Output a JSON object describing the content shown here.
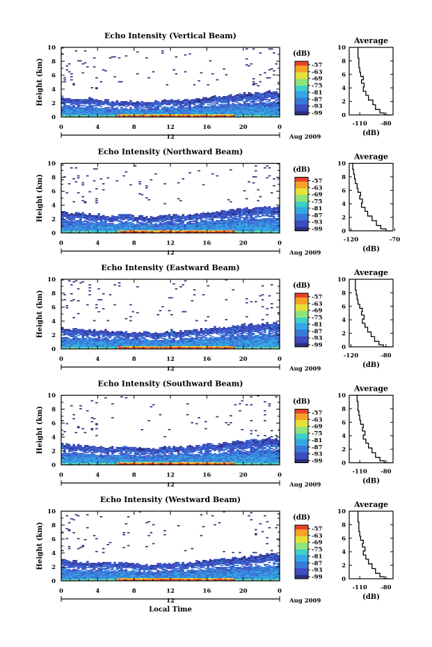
{
  "colors": {
    "colorbar": [
      "#2a2f7a",
      "#3d4cc0",
      "#3a79d9",
      "#34a7e2",
      "#3fd0c8",
      "#8ee37a",
      "#e3e23a",
      "#f7a128",
      "#e8402a"
    ],
    "axis": "#000000"
  },
  "chart_data": [
    {
      "type": "heatmap",
      "title": "Echo Intensity (Vertical Beam)",
      "ylabel": "Height (km)",
      "xticks": [
        "0",
        "4",
        "8",
        "12",
        "16",
        "20",
        "0"
      ],
      "yticks": [
        "0",
        "2",
        "4",
        "6",
        "8",
        "10"
      ],
      "xlim": [
        0,
        24
      ],
      "ylim": [
        0,
        10
      ],
      "date_marker": "12",
      "date_label": "Aug 2009",
      "colorbar": {
        "unit": "(dB)",
        "ticks": [
          "-57",
          "-63",
          "-69",
          "-75",
          "-81",
          "-87",
          "-93",
          "-99"
        ]
      },
      "echo_top_km": [
        2.8,
        2.6,
        2.7,
        2.6,
        2.5,
        2.4,
        2.3,
        2.4,
        2.2,
        2.3,
        2.2,
        2.4,
        2.5,
        2.4,
        2.5,
        2.6,
        2.9,
        3.0,
        3.1,
        3.3,
        3.4,
        3.5,
        3.6,
        3.7,
        3.5
      ]
    },
    {
      "type": "line",
      "title": "Average",
      "xlabel": "(dB)",
      "xticks": [
        "-110",
        "-80"
      ],
      "yticks": [
        "0",
        "2",
        "4",
        "6",
        "8",
        "10"
      ],
      "xlim": [
        -122,
        -72
      ],
      "ylim": [
        0,
        10
      ],
      "x": [
        -75,
        -82,
        -87,
        -92,
        -95,
        -100,
        -103,
        -106,
        -105,
        -108,
        -106,
        -109,
        -110,
        -111,
        -111,
        -112,
        -112
      ],
      "y": [
        0,
        0.3,
        0.8,
        1.5,
        2.2,
        2.9,
        3.5,
        4.1,
        4.7,
        5.2,
        5.7,
        6.3,
        7.0,
        7.7,
        8.4,
        9.1,
        10
      ]
    },
    {
      "type": "heatmap",
      "title": "Echo Intensity (Northward Beam)",
      "ylabel": "Height (km)",
      "xticks": [
        "0",
        "4",
        "8",
        "12",
        "16",
        "20",
        "0"
      ],
      "yticks": [
        "0",
        "2",
        "4",
        "6",
        "8",
        "10"
      ],
      "xlim": [
        0,
        24
      ],
      "ylim": [
        0,
        10
      ],
      "date_marker": "12",
      "date_label": "Aug 2009",
      "colorbar": {
        "unit": "(dB)",
        "ticks": [
          "-57",
          "-63",
          "-69",
          "-75",
          "-81",
          "-87",
          "-93",
          "-99"
        ]
      },
      "echo_top_km": [
        3.0,
        2.8,
        2.9,
        2.7,
        2.6,
        2.5,
        2.5,
        2.6,
        2.4,
        2.4,
        2.3,
        2.5,
        2.6,
        2.6,
        2.7,
        2.8,
        3.0,
        3.1,
        3.2,
        3.4,
        3.5,
        3.6,
        3.7,
        3.8,
        3.6
      ]
    },
    {
      "type": "line",
      "title": "Average",
      "xlabel": "(dB)",
      "xticks": [
        "-120",
        "-70"
      ],
      "yticks": [
        "0",
        "2",
        "4",
        "6",
        "8",
        "10"
      ],
      "xlim": [
        -122,
        -72
      ],
      "ylim": [
        0,
        10
      ],
      "x": [
        -73,
        -80,
        -86,
        -91,
        -96,
        -101,
        -104,
        -108,
        -107,
        -110,
        -109,
        -112,
        -113,
        -115,
        -116,
        -117,
        -118
      ],
      "y": [
        0,
        0.3,
        0.8,
        1.5,
        2.2,
        2.9,
        3.5,
        4.1,
        4.7,
        5.2,
        5.7,
        6.3,
        7.0,
        7.7,
        8.4,
        9.1,
        10
      ]
    },
    {
      "type": "heatmap",
      "title": "Echo Intensity (Eastward Beam)",
      "ylabel": "Height (km)",
      "xticks": [
        "0",
        "4",
        "8",
        "12",
        "16",
        "20",
        "0"
      ],
      "yticks": [
        "0",
        "2",
        "4",
        "6",
        "8",
        "10"
      ],
      "xlim": [
        0,
        24
      ],
      "ylim": [
        0,
        10
      ],
      "date_marker": "12",
      "date_label": "Aug 2009",
      "colorbar": {
        "unit": "(dB)",
        "ticks": [
          "-57",
          "-63",
          "-69",
          "-75",
          "-81",
          "-87",
          "-93",
          "-99"
        ]
      },
      "echo_top_km": [
        3.0,
        2.9,
        2.8,
        2.7,
        2.6,
        2.6,
        2.5,
        2.6,
        2.4,
        2.4,
        2.3,
        2.5,
        2.6,
        2.5,
        2.6,
        2.8,
        3.0,
        3.1,
        3.2,
        3.3,
        3.5,
        3.6,
        3.7,
        3.8,
        3.5
      ]
    },
    {
      "type": "line",
      "title": "Average",
      "xlabel": "(dB)",
      "xticks": [
        "-120",
        "-80"
      ],
      "yticks": [
        "0",
        "2",
        "4",
        "6",
        "8",
        "10"
      ],
      "xlim": [
        -122,
        -72
      ],
      "ylim": [
        0,
        10
      ],
      "x": [
        -76,
        -83,
        -88,
        -93,
        -97,
        -101,
        -104,
        -107,
        -105,
        -108,
        -107,
        -110,
        -112,
        -113,
        -114,
        -115,
        -115
      ],
      "y": [
        0,
        0.3,
        0.8,
        1.5,
        2.2,
        2.9,
        3.5,
        4.1,
        4.7,
        5.2,
        5.7,
        6.3,
        7.0,
        7.7,
        8.4,
        9.1,
        10
      ]
    },
    {
      "type": "heatmap",
      "title": "Echo Intensity (Southward Beam)",
      "ylabel": "Height (km)",
      "xticks": [
        "0",
        "4",
        "8",
        "12",
        "16",
        "20",
        "0"
      ],
      "yticks": [
        "0",
        "2",
        "4",
        "6",
        "8",
        "10"
      ],
      "xlim": [
        0,
        24
      ],
      "ylim": [
        0,
        10
      ],
      "date_marker": "12",
      "date_label": "Aug 2009",
      "colorbar": {
        "unit": "(dB)",
        "ticks": [
          "-57",
          "-63",
          "-69",
          "-75",
          "-81",
          "-87",
          "-93",
          "-99"
        ]
      },
      "echo_top_km": [
        3.0,
        2.9,
        2.8,
        2.7,
        2.6,
        2.5,
        2.5,
        2.6,
        2.5,
        2.4,
        2.3,
        2.5,
        2.6,
        2.6,
        2.7,
        2.8,
        3.0,
        3.1,
        3.2,
        3.4,
        3.5,
        3.7,
        3.8,
        3.9,
        3.6
      ]
    },
    {
      "type": "line",
      "title": "Average",
      "xlabel": "(dB)",
      "xticks": [
        "-110",
        "-80"
      ],
      "yticks": [
        "0",
        "2",
        "4",
        "6",
        "8",
        "10"
      ],
      "xlim": [
        -122,
        -72
      ],
      "ylim": [
        0,
        10
      ],
      "x": [
        -75,
        -82,
        -87,
        -92,
        -96,
        -100,
        -103,
        -106,
        -104,
        -107,
        -106,
        -109,
        -110,
        -111,
        -112,
        -112,
        -113
      ],
      "y": [
        0,
        0.3,
        0.8,
        1.5,
        2.2,
        2.9,
        3.5,
        4.1,
        4.7,
        5.2,
        5.7,
        6.3,
        7.0,
        7.7,
        8.4,
        9.1,
        10
      ]
    },
    {
      "type": "heatmap",
      "title": "Echo Intensity (Westward Beam)",
      "ylabel": "Height (km)",
      "xlabel": "Local Time",
      "xticks": [
        "0",
        "4",
        "8",
        "12",
        "16",
        "20",
        "0"
      ],
      "yticks": [
        "0",
        "2",
        "4",
        "6",
        "8",
        "10"
      ],
      "xlim": [
        0,
        24
      ],
      "ylim": [
        0,
        10
      ],
      "date_marker": "12",
      "date_label": "Aug 2009",
      "colorbar": {
        "unit": "(dB)",
        "ticks": [
          "-57",
          "-63",
          "-69",
          "-75",
          "-81",
          "-87",
          "-93",
          "-99"
        ]
      },
      "echo_top_km": [
        3.0,
        2.9,
        2.8,
        2.7,
        2.6,
        2.6,
        2.5,
        2.6,
        2.4,
        2.4,
        2.3,
        2.5,
        2.6,
        2.6,
        2.7,
        2.8,
        3.0,
        3.1,
        3.2,
        3.4,
        3.5,
        3.6,
        3.8,
        3.9,
        3.6
      ]
    },
    {
      "type": "line",
      "title": "Average",
      "xlabel": "(dB)",
      "xticks": [
        "-110",
        "-80"
      ],
      "yticks": [
        "0",
        "2",
        "4",
        "6",
        "8",
        "10"
      ],
      "xlim": [
        -122,
        -72
      ],
      "ylim": [
        0,
        10
      ],
      "x": [
        -75,
        -82,
        -87,
        -92,
        -96,
        -100,
        -103,
        -106,
        -104,
        -107,
        -106,
        -109,
        -110,
        -111,
        -111,
        -112,
        -112
      ],
      "y": [
        0,
        0.3,
        0.8,
        1.5,
        2.2,
        2.9,
        3.5,
        4.1,
        4.7,
        5.2,
        5.7,
        6.3,
        7.0,
        7.7,
        8.4,
        9.1,
        10
      ]
    }
  ]
}
